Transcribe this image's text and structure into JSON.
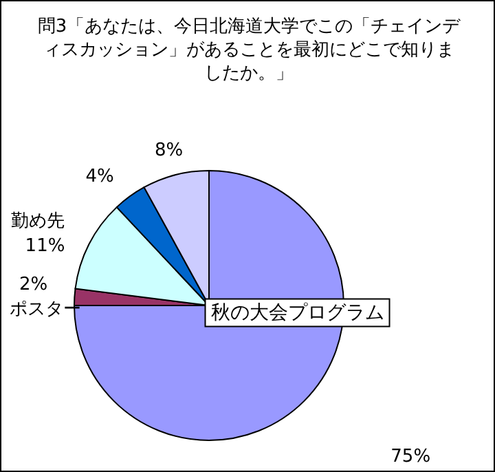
{
  "chart_data": {
    "type": "pie",
    "title": "問3「あなたは、今日北海道大学でこの「チェインディスカッション」があることを最初にどこで知りましたか。」",
    "categories": [
      "秋の大会プログラム",
      "ポスター",
      "勤め先",
      null,
      null
    ],
    "values": [
      75,
      2,
      11,
      4,
      8
    ],
    "colors": [
      "#9999ff",
      "#993366",
      "#ccffff",
      "#0066cc",
      "#ccccff"
    ],
    "value_labels": [
      "75%",
      "2%",
      "11%",
      "4%",
      "8%"
    ]
  }
}
